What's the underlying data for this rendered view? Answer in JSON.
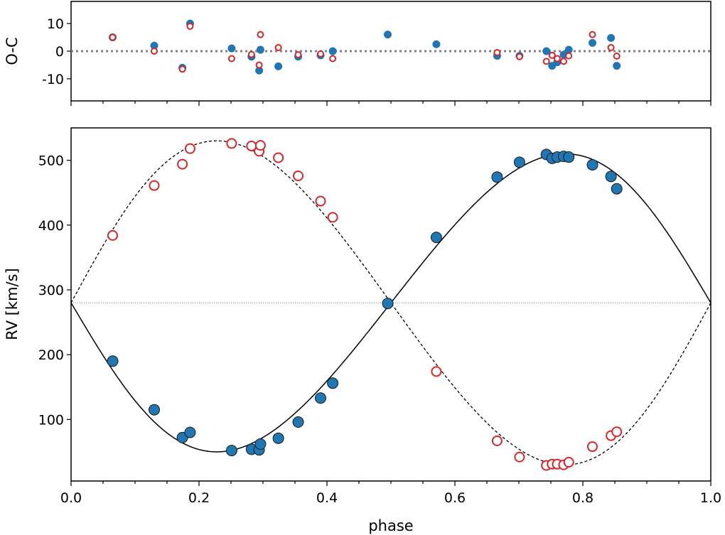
{
  "colors": {
    "primary": "#1f77b4",
    "secondary": "#d62728",
    "zero_line": "#808080",
    "systemic_line": "#808080"
  },
  "chart_data": [
    {
      "type": "scatter",
      "panel": "residuals",
      "title": "",
      "ylabel": "O-C",
      "xlabel": "",
      "xlim": [
        0.0,
        1.0
      ],
      "ylim": [
        -18,
        18
      ],
      "yticks": [
        -10,
        0,
        10
      ],
      "ytick_labels": [
        "-10",
        "0",
        "10"
      ],
      "xticks": [
        0.0,
        0.2,
        0.4,
        0.6,
        0.8,
        1.0
      ],
      "zero_line": 0,
      "series": [
        {
          "name": "primary",
          "marker": "filled-circle",
          "x": [
            0.065,
            0.13,
            0.174,
            0.186,
            0.251,
            0.282,
            0.294,
            0.296,
            0.324,
            0.355,
            0.39,
            0.409,
            0.495,
            0.571,
            0.666,
            0.701,
            0.743,
            0.752,
            0.76,
            0.77,
            0.778,
            0.815,
            0.844,
            0.853
          ],
          "y": [
            5.0,
            2.0,
            -6.0,
            10.0,
            1.0,
            -2.0,
            -7.0,
            0.5,
            -5.5,
            -2.0,
            -1.5,
            0.0,
            6.0,
            2.5,
            -1.7,
            -1.7,
            0.0,
            -5.3,
            -4.0,
            -1.3,
            0.5,
            3.0,
            4.8,
            -5.3
          ]
        },
        {
          "name": "secondary",
          "marker": "open-circle",
          "x": [
            0.065,
            0.13,
            0.174,
            0.186,
            0.251,
            0.282,
            0.294,
            0.296,
            0.324,
            0.355,
            0.39,
            0.409,
            0.666,
            0.701,
            0.743,
            0.752,
            0.76,
            0.77,
            0.778,
            0.815,
            0.844,
            0.853
          ],
          "y": [
            5.0,
            0.0,
            -6.5,
            9.0,
            -2.7,
            -1.2,
            -5.0,
            6.0,
            1.3,
            -1.3,
            -1.0,
            -2.7,
            -0.5,
            -2.0,
            -3.7,
            -1.5,
            -2.7,
            -3.7,
            -1.7,
            6.0,
            1.3,
            -1.8
          ]
        }
      ]
    },
    {
      "type": "scatter",
      "panel": "radial-velocity",
      "title": "",
      "xlabel": "phase",
      "ylabel": "RV [km/s]",
      "xlim": [
        0.0,
        1.0
      ],
      "ylim": [
        5,
        550
      ],
      "xticks": [
        0.0,
        0.2,
        0.4,
        0.6,
        0.8,
        1.0
      ],
      "xtick_labels": [
        "0.0",
        "0.2",
        "0.4",
        "0.6",
        "0.8",
        "1.0"
      ],
      "yticks": [
        100,
        200,
        300,
        400,
        500
      ],
      "ytick_labels": [
        "100",
        "200",
        "300",
        "400",
        "500"
      ],
      "systemic_velocity": 280,
      "model": {
        "K1": 230,
        "K2": 250,
        "eccentricity": 0.07,
        "omega_deg": 0,
        "T0_phase": 0.0
      },
      "series": [
        {
          "name": "primary",
          "marker": "filled-circle",
          "x": [
            0.065,
            0.13,
            0.174,
            0.186,
            0.251,
            0.282,
            0.294,
            0.296,
            0.324,
            0.355,
            0.39,
            0.409,
            0.495,
            0.571,
            0.666,
            0.701,
            0.743,
            0.752,
            0.76,
            0.77,
            0.778,
            0.815,
            0.844,
            0.853
          ],
          "y": [
            190,
            115,
            72,
            80,
            52,
            54,
            53,
            62,
            71,
            96,
            133,
            156,
            279,
            381,
            474,
            497,
            509,
            503,
            505,
            506,
            505,
            493,
            475,
            456
          ]
        },
        {
          "name": "secondary",
          "marker": "open-circle",
          "x": [
            0.065,
            0.13,
            0.174,
            0.186,
            0.251,
            0.282,
            0.294,
            0.296,
            0.324,
            0.355,
            0.39,
            0.409,
            0.571,
            0.666,
            0.701,
            0.743,
            0.752,
            0.76,
            0.77,
            0.778,
            0.815,
            0.844,
            0.853
          ],
          "y": [
            384,
            461,
            494,
            518,
            526,
            522,
            514,
            523,
            504,
            476,
            437,
            412,
            174,
            67,
            42,
            29,
            31,
            31,
            30,
            34,
            58,
            75,
            81
          ]
        }
      ]
    }
  ]
}
